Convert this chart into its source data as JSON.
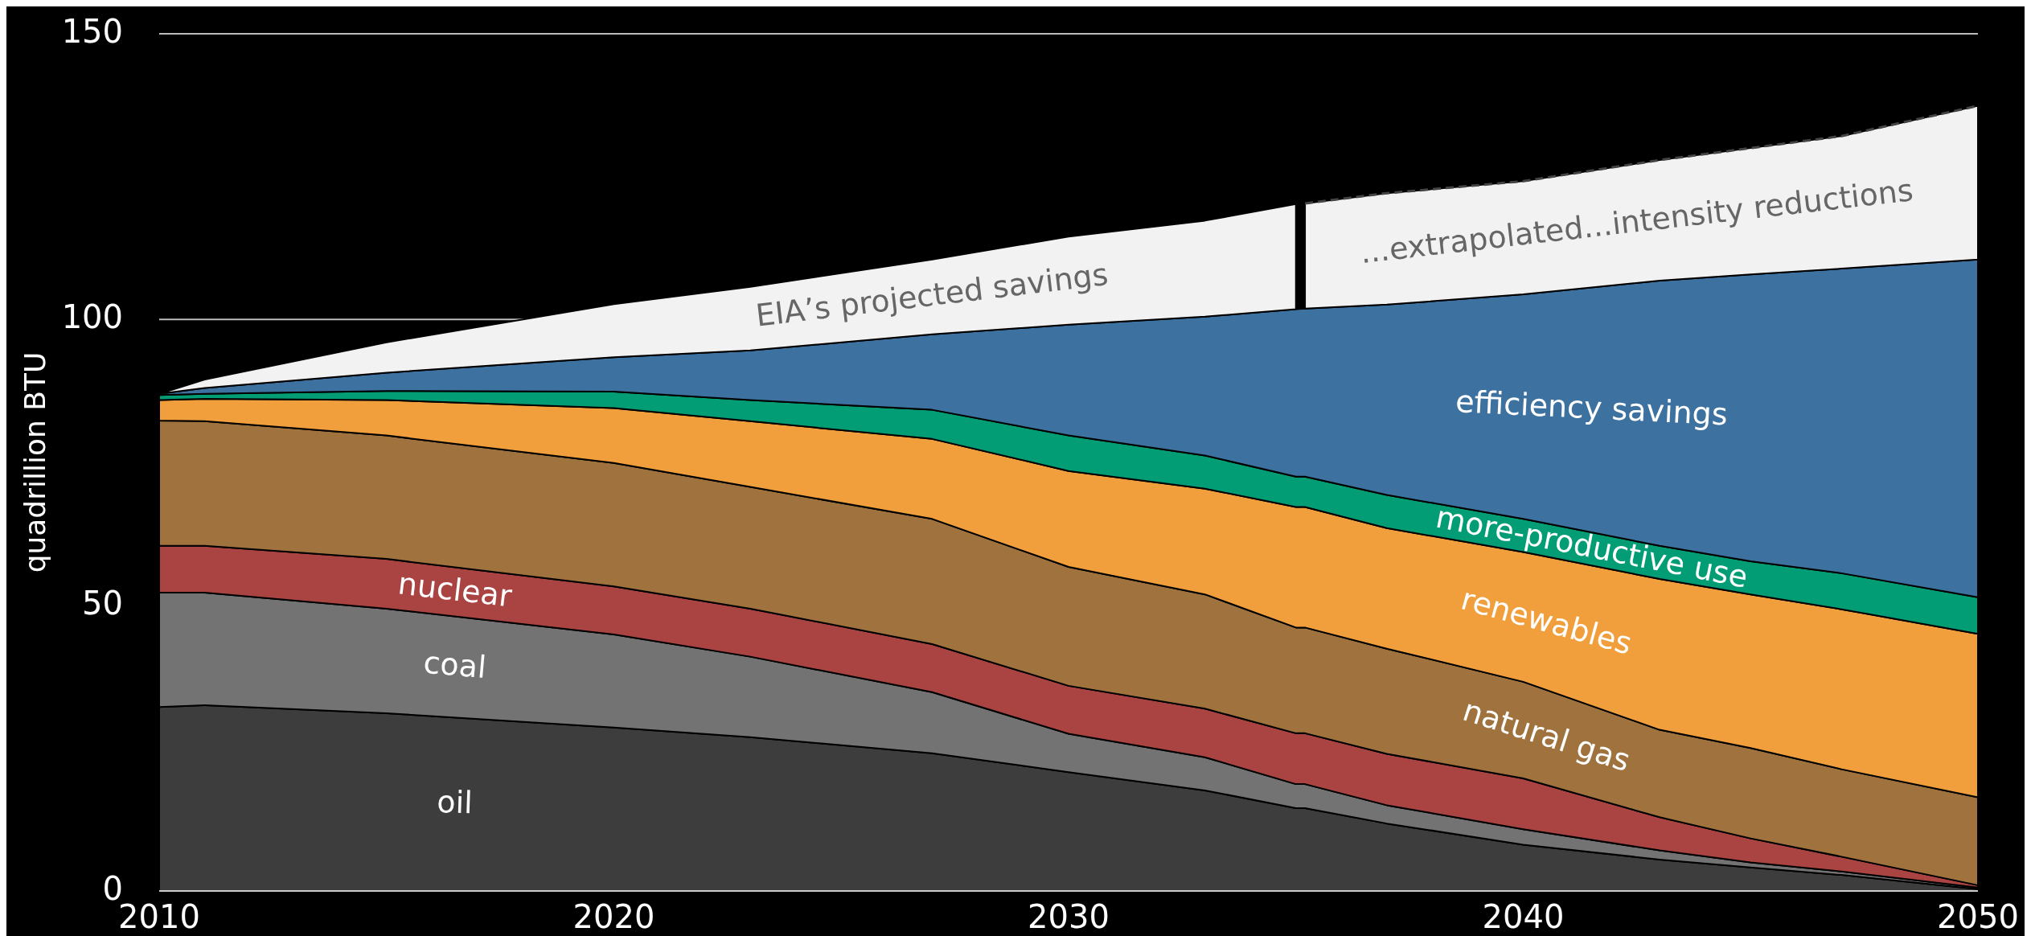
{
  "chart_data": {
    "type": "area",
    "stacked": true,
    "ylabel": "quadrillion BTU",
    "x": [
      2010,
      2011,
      2015,
      2020,
      2023,
      2027,
      2030,
      2033,
      2035,
      2035.2,
      2037,
      2040,
      2043,
      2045,
      2047,
      2050
    ],
    "xlim": [
      2010,
      2050
    ],
    "xticks": [
      2010,
      2020,
      2030,
      2040,
      2050
    ],
    "ylim": [
      0,
      150
    ],
    "yticks": [
      0,
      50,
      100,
      150
    ],
    "grid": "y",
    "legend": false,
    "series": [
      {
        "name": "oil",
        "color": "#3d3d3d",
        "values": [
          32.2,
          32.5,
          31.1,
          28.6,
          26.9,
          24.1,
          20.8,
          17.6,
          14.5,
          14.5,
          11.8,
          8.1,
          5.5,
          4.1,
          2.8,
          0.3
        ]
      },
      {
        "name": "coal",
        "color": "#737373",
        "values": [
          20.0,
          19.7,
          18.3,
          16.3,
          14.1,
          10.7,
          6.7,
          5.8,
          4.2,
          4.2,
          3.2,
          2.7,
          1.6,
          0.9,
          0.6,
          0.3
        ]
      },
      {
        "name": "nuclear",
        "color": "#aa4442",
        "values": [
          8.2,
          8.2,
          8.7,
          8.4,
          8.4,
          8.4,
          8.4,
          8.5,
          8.9,
          8.9,
          9.0,
          8.9,
          5.8,
          4.2,
          2.6,
          0.4
        ]
      },
      {
        "name": "natural gas",
        "color": "#9f723e",
        "values": [
          21.9,
          21.8,
          21.6,
          21.6,
          21.3,
          21.9,
          20.8,
          20.0,
          18.5,
          18.5,
          18.4,
          16.9,
          15.3,
          15.8,
          15.3,
          15.4
        ]
      },
      {
        "name": "renewables",
        "color": "#f19f3c",
        "values": [
          3.6,
          3.9,
          6.2,
          9.6,
          11.5,
          14.0,
          16.8,
          18.5,
          21.1,
          21.1,
          21.1,
          22.7,
          26.4,
          26.9,
          28.0,
          28.6
        ]
      },
      {
        "name": "more-productive use",
        "color": "#029d74",
        "values": [
          0.9,
          0.9,
          1.6,
          2.9,
          3.7,
          5.1,
          6.2,
          5.8,
          5.3,
          5.3,
          5.8,
          5.8,
          5.8,
          5.8,
          6.3,
          6.4
        ]
      },
      {
        "name": "efficiency savings",
        "color": "#3d719f",
        "values": [
          0.2,
          1.0,
          3.2,
          6.0,
          8.7,
          13.2,
          19.4,
          24.3,
          29.3,
          29.4,
          33.3,
          39.3,
          46.4,
          50.2,
          53.3,
          59.1
        ]
      },
      {
        "name": "EIA’s projected savings",
        "color": "#f2f2f2",
        "values": [
          0,
          1.5,
          5.3,
          9.3,
          11.1,
          13.1,
          15.4,
          16.8,
          18.4,
          null,
          null,
          null,
          null,
          null,
          null,
          null
        ]
      },
      {
        "name": "...extrapolated...intensity reductions",
        "color": "#f2f2f2",
        "line_style": "dashed",
        "values": [
          null,
          null,
          null,
          null,
          null,
          null,
          null,
          null,
          null,
          18.4,
          19.5,
          19.8,
          21.1,
          22.1,
          23.2,
          26.9
        ]
      }
    ]
  }
}
